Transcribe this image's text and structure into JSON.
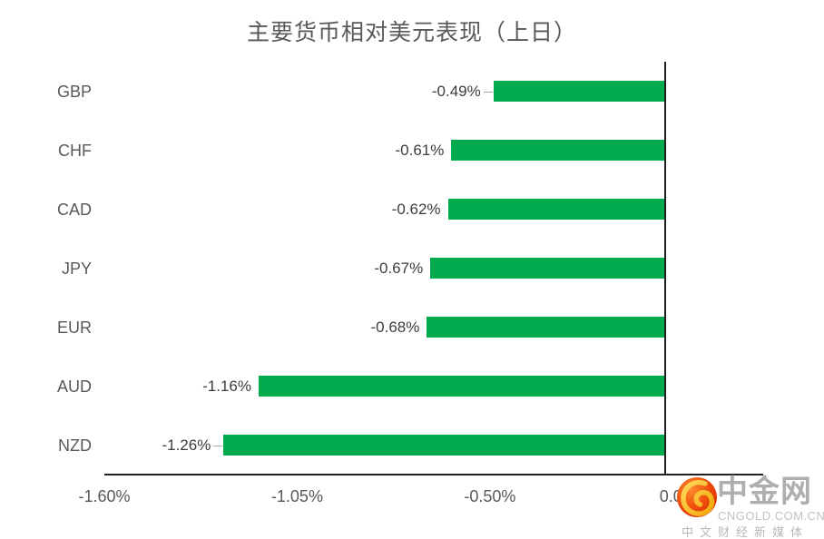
{
  "chart_data": {
    "type": "bar",
    "orientation": "horizontal",
    "title": "主要货币相对美元表现（上日）",
    "categories": [
      "GBP",
      "CHF",
      "CAD",
      "JPY",
      "EUR",
      "AUD",
      "NZD"
    ],
    "values": [
      -0.49,
      -0.61,
      -0.62,
      -0.67,
      -0.68,
      -1.16,
      -1.26
    ],
    "value_labels": [
      "-0.49%",
      "-0.61%",
      "-0.62%",
      "-0.67%",
      "-0.68%",
      "-1.16%",
      "-1.26%"
    ],
    "leader_lines": [
      true,
      false,
      false,
      false,
      false,
      false,
      true
    ],
    "x_tick_labels": [
      "-1.60%",
      "-1.05%",
      "-0.50%",
      "0.05%"
    ],
    "x_tick_values": [
      -1.6,
      -1.05,
      -0.5,
      0.05
    ],
    "xlim": [
      -1.6,
      0.28
    ],
    "grid": "off",
    "legend": "none",
    "bar_color": "#00AB4E",
    "axis_color": "#1f1f1f",
    "label_color": "#3d3d3d",
    "tick_color": "#595959"
  },
  "watermark": {
    "name": "中金网",
    "domain": "CNGOLD.COM.CN",
    "tagline": "中文财经新媒体",
    "logo": {
      "icon": "red-swirl-logo-icon",
      "circle_color": "#E8420A",
      "circle_highlight": "#FF8C2E",
      "swirl_color": "#FFC629"
    }
  }
}
